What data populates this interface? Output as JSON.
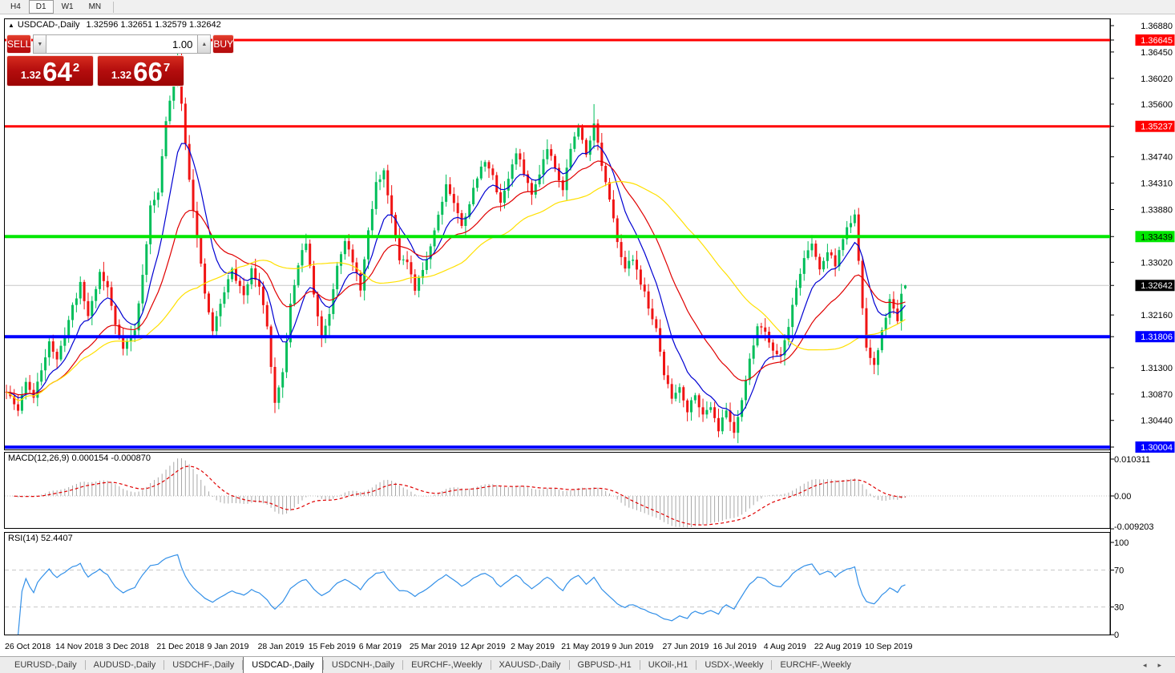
{
  "toolbar": {
    "timeframes": [
      {
        "label": "H4",
        "active": false
      },
      {
        "label": "D1",
        "active": true
      },
      {
        "label": "W1",
        "active": false
      },
      {
        "label": "MN",
        "active": false
      }
    ]
  },
  "chart": {
    "title": {
      "arrow": "▲",
      "symbol": "USDCAD-,Daily",
      "ohlc": "1.32596 1.32651 1.32579 1.32642"
    },
    "trade_panel": {
      "sell_label": "SELL",
      "buy_label": "BUY",
      "volume": "1.00",
      "spin_down_icon": "▼",
      "spin_up_icon": "▲",
      "sell_price_small": "1.32",
      "sell_price_big": "64",
      "sell_price_sup": "2",
      "buy_price_small": "1.32",
      "buy_price_big": "66",
      "buy_price_sup": "7"
    }
  },
  "chart_data": {
    "type": "candlestick",
    "symbol": "USDCAD",
    "timeframe": "Daily",
    "ohlc_display": {
      "open": 1.32596,
      "high": 1.32651,
      "low": 1.32579,
      "close": 1.32642
    },
    "price_axis": {
      "plain_ticks": [
        "1.36880",
        "1.36450",
        "1.36020",
        "1.35600",
        "1.34740",
        "1.34310",
        "1.33880",
        "1.33020",
        "1.32160",
        "1.31300",
        "1.30870",
        "1.30440"
      ]
    },
    "hlines": [
      {
        "price": 1.36645,
        "label": "1.36645",
        "color": "#FF0000",
        "width": 3,
        "label_bg": "#FF0000",
        "label_fg": "#FFFFFF"
      },
      {
        "price": 1.35237,
        "label": "1.35237",
        "color": "#FF0000",
        "width": 3,
        "label_bg": "#FF0000",
        "label_fg": "#FFFFFF"
      },
      {
        "price": 1.33439,
        "label": "1.33439",
        "color": "#00E600",
        "width": 4,
        "label_bg": "#00E600",
        "label_fg": "#000000"
      },
      {
        "price": 1.31806,
        "label": "1.31806",
        "color": "#0000FF",
        "width": 4,
        "label_bg": "#0000FF",
        "label_fg": "#FFFFFF"
      },
      {
        "price": 1.30004,
        "label": "1.30004",
        "color": "#0000FF",
        "width": 4,
        "label_bg": "#0000FF",
        "label_fg": "#FFFFFF"
      }
    ],
    "current_price": {
      "value": 1.32642,
      "label": "1.32642",
      "label_bg": "#000000",
      "label_fg": "#FFFFFF",
      "line_color": "#C8C8C8"
    },
    "candles": {
      "count": 232,
      "seed": 11,
      "noise": 0.0005,
      "wick": 0.0018,
      "up_color": "#00BE5A",
      "down_color": "#F01414",
      "keypoints": [
        [
          0,
          1.309
        ],
        [
          3,
          1.306
        ],
        [
          5,
          1.311
        ],
        [
          7,
          1.308
        ],
        [
          11,
          1.3175
        ],
        [
          13,
          1.314
        ],
        [
          17,
          1.323
        ],
        [
          19,
          1.3265
        ],
        [
          21,
          1.3215
        ],
        [
          24,
          1.3285
        ],
        [
          26,
          1.326
        ],
        [
          28,
          1.32
        ],
        [
          30,
          1.3165
        ],
        [
          33,
          1.319
        ],
        [
          35,
          1.328
        ],
        [
          37,
          1.339
        ],
        [
          39,
          1.342
        ],
        [
          41,
          1.353
        ],
        [
          43,
          1.36
        ],
        [
          44,
          1.364
        ],
        [
          45,
          1.356
        ],
        [
          47,
          1.344
        ],
        [
          49,
          1.334
        ],
        [
          51,
          1.325
        ],
        [
          53,
          1.319
        ],
        [
          56,
          1.3255
        ],
        [
          58,
          1.329
        ],
        [
          61,
          1.3245
        ],
        [
          63,
          1.3295
        ],
        [
          65,
          1.326
        ],
        [
          67,
          1.32
        ],
        [
          68,
          1.313
        ],
        [
          69,
          1.3068
        ],
        [
          71,
          1.312
        ],
        [
          73,
          1.323
        ],
        [
          75,
          1.33
        ],
        [
          77,
          1.3335
        ],
        [
          79,
          1.325
        ],
        [
          81,
          1.318
        ],
        [
          83,
          1.322
        ],
        [
          85,
          1.33
        ],
        [
          87,
          1.334
        ],
        [
          89,
          1.33
        ],
        [
          91,
          1.326
        ],
        [
          93,
          1.335
        ],
        [
          95,
          1.343
        ],
        [
          97,
          1.345
        ],
        [
          99,
          1.338
        ],
        [
          101,
          1.331
        ],
        [
          103,
          1.33
        ],
        [
          105,
          1.3255
        ],
        [
          107,
          1.329
        ],
        [
          109,
          1.333
        ],
        [
          111,
          1.338
        ],
        [
          113,
          1.343
        ],
        [
          115,
          1.34
        ],
        [
          117,
          1.336
        ],
        [
          119,
          1.34
        ],
        [
          121,
          1.344
        ],
        [
          123,
          1.347
        ],
        [
          125,
          1.344
        ],
        [
          127,
          1.34
        ],
        [
          129,
          1.344
        ],
        [
          131,
          1.348
        ],
        [
          133,
          1.345
        ],
        [
          135,
          1.341
        ],
        [
          137,
          1.345
        ],
        [
          139,
          1.349
        ],
        [
          141,
          1.346
        ],
        [
          143,
          1.342
        ],
        [
          145,
          1.349
        ],
        [
          147,
          1.352
        ],
        [
          149,
          1.348
        ],
        [
          151,
          1.353
        ],
        [
          153,
          1.346
        ],
        [
          155,
          1.34
        ],
        [
          157,
          1.334
        ],
        [
          159,
          1.329
        ],
        [
          161,
          1.331
        ],
        [
          163,
          1.327
        ],
        [
          165,
          1.323
        ],
        [
          167,
          1.319
        ],
        [
          169,
          1.312
        ],
        [
          171,
          1.308
        ],
        [
          173,
          1.31
        ],
        [
          175,
          1.306
        ],
        [
          177,
          1.309
        ],
        [
          179,
          1.305
        ],
        [
          181,
          1.307
        ],
        [
          183,
          1.303
        ],
        [
          185,
          1.306
        ],
        [
          187,
          1.3025
        ],
        [
          189,
          1.308
        ],
        [
          191,
          1.314
        ],
        [
          193,
          1.32
        ],
        [
          195,
          1.319
        ],
        [
          197,
          1.316
        ],
        [
          199,
          1.315
        ],
        [
          201,
          1.32
        ],
        [
          203,
          1.326
        ],
        [
          205,
          1.331
        ],
        [
          207,
          1.333
        ],
        [
          209,
          1.329
        ],
        [
          211,
          1.332
        ],
        [
          213,
          1.33
        ],
        [
          215,
          1.334
        ],
        [
          217,
          1.337
        ],
        [
          218,
          1.3375
        ],
        [
          219,
          1.33
        ],
        [
          220,
          1.323
        ],
        [
          221,
          1.316
        ],
        [
          223,
          1.313
        ],
        [
          225,
          1.319
        ],
        [
          227,
          1.324
        ],
        [
          229,
          1.321
        ],
        [
          230,
          1.325
        ],
        [
          231,
          1.32642
        ]
      ],
      "forced_wicks": [
        {
          "i": 44,
          "high": 1.36655
        },
        {
          "i": 151,
          "high": 1.356
        },
        {
          "i": 218,
          "high": 1.3387
        },
        {
          "i": 187,
          "low": 1.3017
        },
        {
          "i": 69,
          "low": 1.3056
        }
      ]
    },
    "moving_averages": [
      {
        "type": "ema",
        "period": 10,
        "color": "#0000D2"
      },
      {
        "type": "ema",
        "period": 25,
        "color": "#E00000"
      },
      {
        "type": "sma",
        "period": 50,
        "color": "#FFE000"
      }
    ],
    "x_axis": {
      "labels": [
        "26 Oct 2018",
        "14 Nov 2018",
        "3 Dec 2018",
        "21 Dec 2018",
        "9 Jan 2019",
        "28 Jan 2019",
        "15 Feb 2019",
        "6 Mar 2019",
        "25 Mar 2019",
        "12 Apr 2019",
        "2 May 2019",
        "21 May 2019",
        "9 Jun 2019",
        "27 Jun 2019",
        "16 Jul 2019",
        "4 Aug 2019",
        "22 Aug 2019",
        "10 Sep 2019"
      ],
      "label_days": [
        0,
        13,
        26,
        39,
        52,
        65,
        78,
        91,
        104,
        117,
        130,
        143,
        156,
        169,
        182,
        195,
        208,
        221
      ]
    },
    "macd": {
      "label_full": "MACD(12,26,9) 0.000154 -0.000870",
      "fast": 12,
      "slow": 26,
      "signal": 9,
      "value_main": "0.000154",
      "value_signal": "-0.000870",
      "axis_ticks": [
        "0.010311",
        "0.00",
        "-0.009203"
      ],
      "axis_values": [
        0.010311,
        0,
        -0.009203
      ],
      "bar_color": "#A8A8A8",
      "signal_color": "#E00000"
    },
    "rsi": {
      "label_full": "RSI(14) 52.4407",
      "period": 14,
      "value": "52.4407",
      "axis_ticks": [
        "100",
        "70",
        "30",
        "0"
      ],
      "axis_values": [
        100,
        70,
        30,
        0
      ],
      "levels": [
        70,
        30
      ],
      "color": "#3390E8"
    }
  },
  "tabs": {
    "items": [
      {
        "label": "EURUSD-,Daily",
        "active": false
      },
      {
        "label": "AUDUSD-,Daily",
        "active": false
      },
      {
        "label": "USDCHF-,Daily",
        "active": false
      },
      {
        "label": "USDCAD-,Daily",
        "active": true
      },
      {
        "label": "USDCNH-,Daily",
        "active": false
      },
      {
        "label": "EURCHF-,Weekly",
        "active": false
      },
      {
        "label": "XAUUSD-,Daily",
        "active": false
      },
      {
        "label": "GBPUSD-,H1",
        "active": false
      },
      {
        "label": "UKOil-,H1",
        "active": false
      },
      {
        "label": "USDX-,Weekly",
        "active": false
      },
      {
        "label": "EURCHF-,Weekly",
        "active": false
      }
    ],
    "nav_left_icon": "◂",
    "nav_right_icon": "▸"
  }
}
